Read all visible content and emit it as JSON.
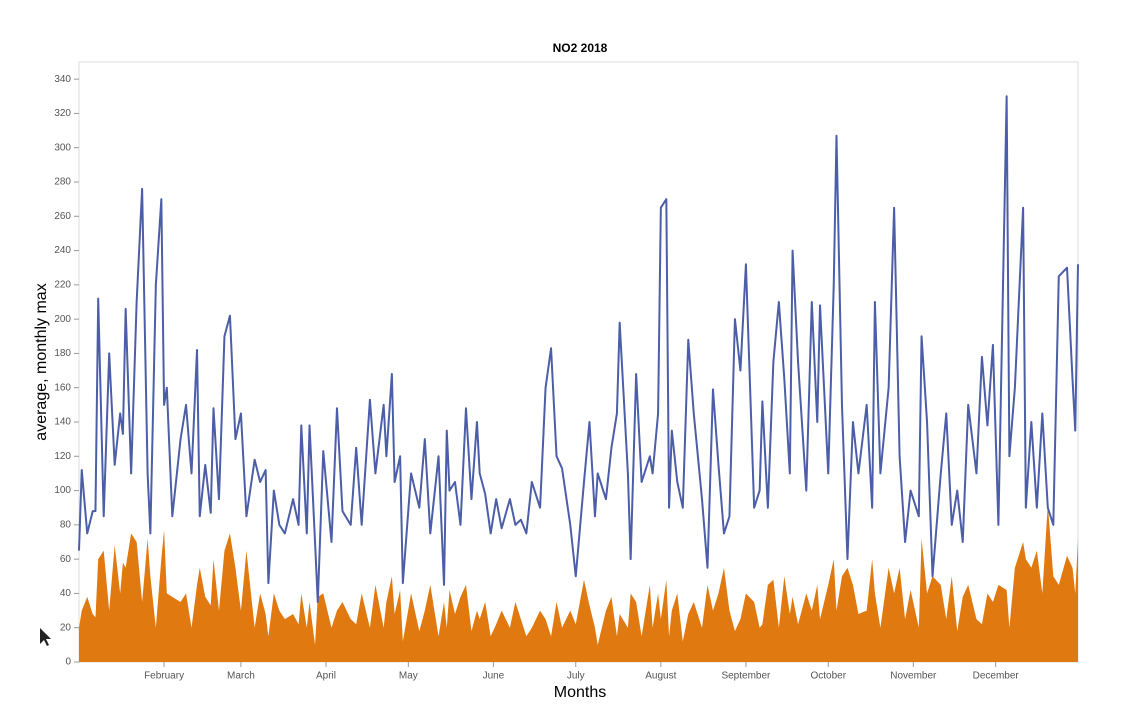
{
  "chart_data": {
    "type": "line",
    "title": "NO2 2018",
    "x_label": "Months",
    "y_label": "average, monthly max",
    "xlim": [
      1,
      365
    ],
    "ylim": [
      0,
      350
    ],
    "yticks": [
      0,
      20,
      40,
      60,
      80,
      100,
      120,
      140,
      160,
      180,
      200,
      220,
      240,
      260,
      280,
      300,
      320,
      340
    ],
    "xticks": [
      {
        "value": 32,
        "label": "February"
      },
      {
        "value": 60,
        "label": "March"
      },
      {
        "value": 91,
        "label": "April"
      },
      {
        "value": 121,
        "label": "May"
      },
      {
        "value": 152,
        "label": "June"
      },
      {
        "value": 182,
        "label": "July"
      },
      {
        "value": 213,
        "label": "August"
      },
      {
        "value": 244,
        "label": "September"
      },
      {
        "value": 274,
        "label": "October"
      },
      {
        "value": 305,
        "label": "November"
      },
      {
        "value": 335,
        "label": "December"
      }
    ],
    "x": [
      1,
      2,
      4,
      6,
      7,
      8,
      10,
      12,
      14,
      16,
      17,
      18,
      20,
      22,
      24,
      26,
      27,
      29,
      31,
      32,
      33,
      35,
      38,
      40,
      42,
      44,
      45,
      47,
      49,
      50,
      52,
      54,
      56,
      58,
      60,
      62,
      65,
      67,
      69,
      70,
      72,
      74,
      76,
      79,
      81,
      82,
      84,
      85,
      87,
      88,
      90,
      93,
      95,
      97,
      100,
      102,
      104,
      107,
      109,
      112,
      113,
      115,
      116,
      118,
      119,
      122,
      125,
      127,
      129,
      132,
      134,
      135,
      136,
      138,
      140,
      142,
      144,
      146,
      147,
      149,
      151,
      153,
      155,
      158,
      160,
      162,
      164,
      166,
      169,
      171,
      173,
      175,
      177,
      180,
      182,
      185,
      187,
      189,
      190,
      193,
      195,
      197,
      198,
      201,
      202,
      204,
      206,
      209,
      210,
      212,
      213,
      215,
      216,
      217,
      219,
      221,
      223,
      225,
      228,
      230,
      232,
      234,
      236,
      238,
      240,
      242,
      244,
      247,
      249,
      250,
      252,
      254,
      256,
      258,
      260,
      261,
      263,
      266,
      268,
      270,
      271,
      274,
      276,
      277,
      279,
      281,
      283,
      285,
      288,
      290,
      291,
      293,
      296,
      298,
      300,
      302,
      304,
      307,
      308,
      310,
      312,
      315,
      317,
      319,
      321,
      323,
      325,
      328,
      330,
      332,
      334,
      336,
      339,
      340,
      342,
      345,
      346,
      348,
      350,
      352,
      354,
      356,
      358,
      361,
      363,
      364,
      365
    ],
    "series": [
      {
        "color": "#4c5ea8",
        "type": "line",
        "values": [
          65,
          112,
          75,
          88,
          88,
          212,
          85,
          180,
          115,
          145,
          133,
          206,
          110,
          210,
          276,
          110,
          75,
          220,
          270,
          150,
          160,
          85,
          130,
          150,
          110,
          182,
          85,
          115,
          87,
          148,
          95,
          190,
          202,
          130,
          145,
          85,
          118,
          105,
          112,
          46,
          100,
          80,
          75,
          95,
          80,
          138,
          75,
          138,
          70,
          35,
          123,
          70,
          148,
          88,
          80,
          125,
          80,
          153,
          110,
          150,
          120,
          168,
          105,
          120,
          46,
          110,
          90,
          130,
          75,
          120,
          45,
          135,
          100,
          105,
          80,
          148,
          95,
          140,
          110,
          98,
          75,
          95,
          78,
          95,
          80,
          83,
          75,
          105,
          90,
          160,
          183,
          120,
          113,
          80,
          50,
          105,
          140,
          85,
          110,
          95,
          125,
          145,
          198,
          110,
          60,
          168,
          105,
          120,
          110,
          145,
          265,
          270,
          90,
          135,
          105,
          90,
          188,
          145,
          95,
          55,
          159,
          115,
          75,
          85,
          200,
          170,
          232,
          90,
          100,
          152,
          90,
          175,
          210,
          165,
          110,
          240,
          175,
          100,
          210,
          140,
          208,
          110,
          220,
          307,
          150,
          60,
          140,
          110,
          150,
          90,
          210,
          110,
          160,
          265,
          120,
          70,
          100,
          85,
          190,
          140,
          50,
          110,
          145,
          80,
          100,
          70,
          150,
          110,
          178,
          138,
          185,
          80,
          330,
          120,
          160,
          265,
          90,
          140,
          90,
          145,
          90,
          80,
          225,
          230,
          165,
          135,
          232
        ]
      },
      {
        "color": "#e07a10",
        "type": "area",
        "values": [
          20,
          30,
          38,
          28,
          26,
          60,
          65,
          30,
          68,
          40,
          58,
          55,
          75,
          70,
          35,
          72,
          50,
          20,
          60,
          77,
          40,
          38,
          35,
          40,
          20,
          45,
          55,
          38,
          33,
          60,
          30,
          65,
          75,
          55,
          30,
          65,
          20,
          40,
          28,
          15,
          40,
          30,
          25,
          28,
          22,
          40,
          20,
          35,
          10,
          38,
          40,
          20,
          30,
          35,
          25,
          22,
          40,
          20,
          45,
          20,
          35,
          50,
          28,
          42,
          12,
          40,
          18,
          30,
          45,
          15,
          35,
          20,
          42,
          28,
          38,
          45,
          18,
          30,
          25,
          35,
          15,
          22,
          30,
          20,
          35,
          25,
          15,
          20,
          30,
          25,
          15,
          35,
          20,
          30,
          22,
          48,
          33,
          20,
          10,
          30,
          38,
          15,
          28,
          20,
          40,
          35,
          15,
          45,
          20,
          40,
          25,
          48,
          15,
          30,
          40,
          12,
          28,
          35,
          20,
          45,
          30,
          40,
          55,
          30,
          18,
          25,
          40,
          35,
          20,
          22,
          45,
          48,
          20,
          50,
          28,
          38,
          22,
          40,
          30,
          45,
          25,
          45,
          60,
          30,
          50,
          55,
          45,
          28,
          30,
          60,
          40,
          20,
          55,
          40,
          55,
          25,
          42,
          20,
          72,
          40,
          50,
          45,
          25,
          50,
          18,
          38,
          45,
          25,
          22,
          40,
          35,
          45,
          42,
          20,
          55,
          70,
          60,
          55,
          65,
          40,
          92,
          50,
          45,
          62,
          55,
          40,
          72
        ]
      }
    ]
  }
}
